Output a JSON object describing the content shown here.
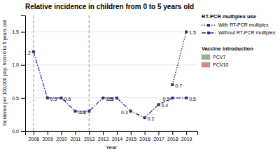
{
  "chart_data": {
    "type": "line",
    "title": "Relative incidence in children from 0 to 5 years old",
    "x_label": "Year",
    "y_label": "Incidence per 100,000 pop. from 0 to 5 years old",
    "x": [
      2008,
      2009,
      2010,
      2011,
      2012,
      2013,
      2014,
      2015,
      2016,
      2017,
      2018,
      2019
    ],
    "xlim": [
      2007.4,
      2019.8
    ],
    "xticks": [
      2008,
      2009,
      2010,
      2011,
      2012,
      2013,
      2014,
      2015,
      2016,
      2017,
      2018,
      2019
    ],
    "ylim": [
      0.0,
      1.75
    ],
    "yticks": [
      {
        "value": 0.0,
        "label": "0.0"
      },
      0.5,
      {
        "value": 1.0,
        "label": "1.0"
      },
      1.5
    ],
    "grid": "y",
    "legend": "right",
    "data_labels": true,
    "legend_titles": [
      "RT-PCR multiplex use",
      "Vaccine introduction"
    ],
    "series": [
      {
        "name": "Without RT-PCR multiplex",
        "color": "#2b2b8a",
        "marker": "square",
        "line_style": "dashdot",
        "values": [
          1.2,
          0.5,
          0.5,
          0.3,
          0.3,
          0.5,
          0.5,
          0.3,
          0.2,
          0.4,
          0.5,
          0.5
        ]
      },
      {
        "name": "With RT-PCR multiplex",
        "color": "#2b2b8a",
        "marker": "square",
        "line_style": "dotted",
        "values": [
          null,
          null,
          null,
          null,
          null,
          null,
          null,
          null,
          null,
          null,
          0.7,
          1.5
        ]
      }
    ],
    "reference_lines": [
      {
        "name": "PCV7",
        "x": 2008,
        "color": "#88bb88"
      },
      {
        "name": "PCV10",
        "x": 2012,
        "color": "#dd8888"
      }
    ]
  }
}
